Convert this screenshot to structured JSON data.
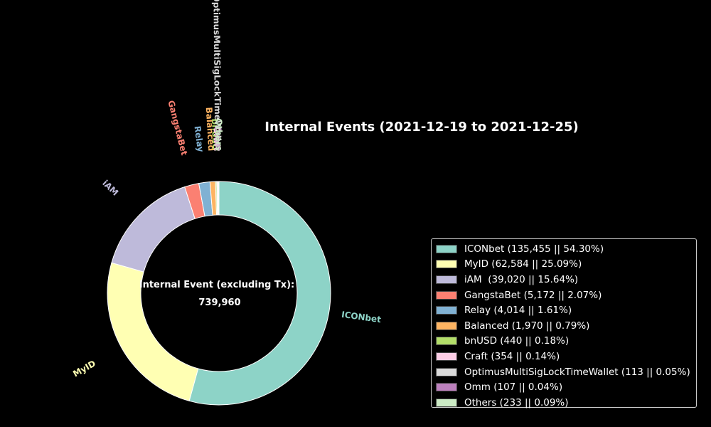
{
  "chart_data": {
    "type": "pie",
    "donut": true,
    "title": "Internal Events (2021-12-19 to 2021-12-25)",
    "center_label": "Internal Event (excluding Tx):",
    "center_value": "739,960",
    "start_angle_deg": 90,
    "direction": "clockwise",
    "legend_position": "right",
    "slices": [
      {
        "name": "ICONbet",
        "value": 135455,
        "percent": 54.3,
        "legend": "ICONbet (135,455 || 54.30%)",
        "color": "#8dd3c7",
        "label_color": "#8dd3c7"
      },
      {
        "name": "MyID",
        "value": 62584,
        "percent": 25.09,
        "legend": "MyID (62,584 || 25.09%)",
        "color": "#ffffb3",
        "label_color": "#ffffb3"
      },
      {
        "name": "iAM",
        "value": 39020,
        "percent": 15.64,
        "legend": "iAM  (39,020 || 15.64%)",
        "color": "#bebada",
        "label_color": "#bebada"
      },
      {
        "name": "GangstaBet",
        "value": 5172,
        "percent": 2.07,
        "legend": "GangstaBet (5,172 || 2.07%)",
        "color": "#fb8072",
        "label_color": "#fb8072"
      },
      {
        "name": "Relay",
        "value": 4014,
        "percent": 1.61,
        "legend": "Relay (4,014 || 1.61%)",
        "color": "#80b1d3",
        "label_color": "#80b1d3"
      },
      {
        "name": "Balanced",
        "value": 1970,
        "percent": 0.79,
        "legend": "Balanced (1,970 || 0.79%)",
        "color": "#fdb462",
        "label_color": "#fdb462"
      },
      {
        "name": "bnUSD",
        "value": 440,
        "percent": 0.18,
        "legend": "bnUSD (440 || 0.18%)",
        "color": "#b3de69",
        "label_color": "#b3de69"
      },
      {
        "name": "Craft",
        "value": 354,
        "percent": 0.14,
        "legend": "Craft (354 || 0.14%)",
        "color": "#fccde5",
        "label_color": "#fccde5"
      },
      {
        "name": "OptimusMultiSigLockTimeWallet",
        "value": 113,
        "percent": 0.05,
        "legend": "OptimusMultiSigLockTimeWallet (113 || 0.05%)",
        "color": "#d9d9d9",
        "label_color": "#d9d9d9"
      },
      {
        "name": "Omm",
        "value": 107,
        "percent": 0.04,
        "legend": "Omm (107 || 0.04%)",
        "color": "#bc80bd",
        "label_color": "#bc80bd"
      },
      {
        "name": "Others",
        "value": 233,
        "percent": 0.09,
        "legend": "Others (233 || 0.09%)",
        "color": "#ccebc5",
        "label_color": "#ccebc5"
      }
    ]
  }
}
